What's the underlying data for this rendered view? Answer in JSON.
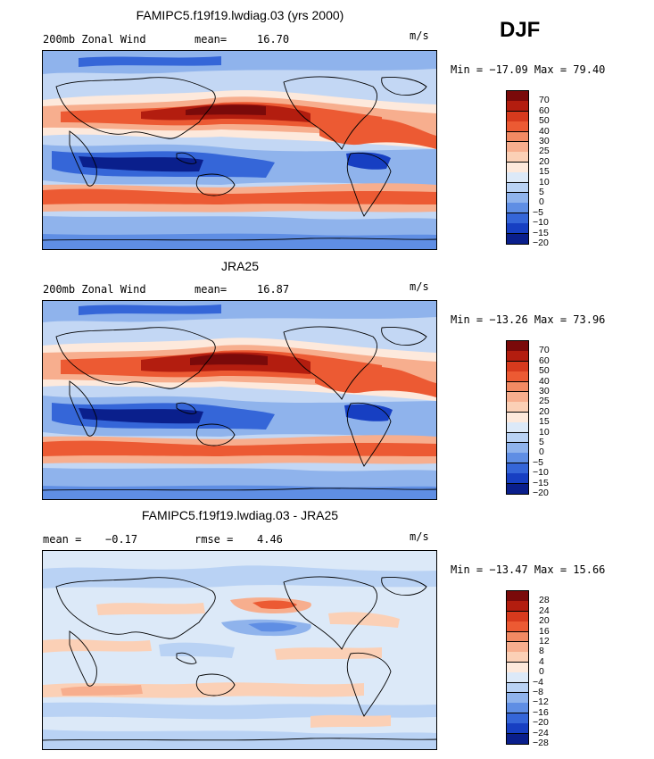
{
  "season": "DJF",
  "chart_data": [
    {
      "type": "heatmap",
      "title": "FAMIPC5.f19f19.lwdiag.03 (yrs 2000)",
      "left_label": "200mb Zonal Wind",
      "stat_label": "mean=",
      "stat_value": "16.70",
      "units": "m/s",
      "min_max": "Min = −17.09 Max =  79.40",
      "min": -17.09,
      "max": 79.4,
      "mean": 16.7,
      "colorbar_levels": [
        "70",
        "60",
        "50",
        "40",
        "30",
        "25",
        "20",
        "15",
        "10",
        "5",
        "0",
        "−5",
        "−10",
        "−15",
        "−20"
      ],
      "colorbar_colors": [
        "#7a0a0a",
        "#b31d0f",
        "#d73a1d",
        "#ec5a33",
        "#f28a63",
        "#f7ae8e",
        "#fbd0b6",
        "#fde9dc",
        "#dce9f8",
        "#b9d2f4",
        "#8fb3ec",
        "#5f8ee4",
        "#3566d8",
        "#173fc2",
        "#0a1f8c"
      ]
    },
    {
      "type": "heatmap",
      "title": "JRA25",
      "left_label": "200mb Zonal Wind",
      "stat_label": "mean=",
      "stat_value": "16.87",
      "units": "m/s",
      "min_max": "Min = −13.26 Max =  73.96",
      "min": -13.26,
      "max": 73.96,
      "mean": 16.87,
      "colorbar_levels": [
        "70",
        "60",
        "50",
        "40",
        "30",
        "25",
        "20",
        "15",
        "10",
        "5",
        "0",
        "−5",
        "−10",
        "−15",
        "−20"
      ],
      "colorbar_colors": [
        "#7a0a0a",
        "#b31d0f",
        "#d73a1d",
        "#ec5a33",
        "#f28a63",
        "#f7ae8e",
        "#fbd0b6",
        "#fde9dc",
        "#dce9f8",
        "#b9d2f4",
        "#8fb3ec",
        "#5f8ee4",
        "#3566d8",
        "#173fc2",
        "#0a1f8c"
      ]
    },
    {
      "type": "heatmap",
      "title": "FAMIPC5.f19f19.lwdiag.03 - JRA25",
      "left_label": "mean =",
      "left_value": "−0.17",
      "stat_label": "rmse =",
      "stat_value": "4.46",
      "units": "m/s",
      "min_max": "Min = −13.47 Max =  15.66",
      "min": -13.47,
      "max": 15.66,
      "mean": -0.17,
      "rmse": 4.46,
      "colorbar_levels": [
        "28",
        "24",
        "20",
        "16",
        "12",
        "8",
        "4",
        "0",
        "−4",
        "−8",
        "−12",
        "−16",
        "−20",
        "−24",
        "−28"
      ],
      "colorbar_colors": [
        "#7a0a0a",
        "#b31d0f",
        "#d73a1d",
        "#ec5a33",
        "#f28a63",
        "#f7ae8e",
        "#fbd0b6",
        "#fde9dc",
        "#dce9f8",
        "#b9d2f4",
        "#8fb3ec",
        "#5f8ee4",
        "#3566d8",
        "#173fc2",
        "#0a1f8c"
      ]
    }
  ]
}
